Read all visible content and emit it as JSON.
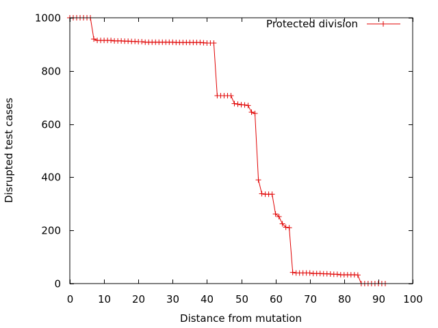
{
  "chart_data": {
    "type": "line",
    "title": "",
    "xlabel": "Distance from mutation",
    "ylabel": "Disrupted test cases",
    "xlim": [
      0,
      100
    ],
    "ylim": [
      0,
      1000
    ],
    "xticks": [
      0,
      10,
      20,
      30,
      40,
      50,
      60,
      70,
      80,
      90,
      100
    ],
    "yticks": [
      0,
      200,
      400,
      600,
      800,
      1000
    ],
    "grid": false,
    "legend_position": "top-right",
    "series": [
      {
        "name": "Protected division",
        "color": "#e00000",
        "marker": "plus",
        "x": [
          0,
          1,
          2,
          3,
          4,
          5,
          6,
          7,
          8,
          9,
          10,
          11,
          12,
          13,
          14,
          15,
          16,
          17,
          18,
          19,
          20,
          21,
          22,
          23,
          24,
          25,
          26,
          27,
          28,
          29,
          30,
          31,
          32,
          33,
          34,
          35,
          36,
          37,
          38,
          39,
          40,
          41,
          42,
          43,
          44,
          45,
          46,
          47,
          48,
          49,
          50,
          51,
          52,
          53,
          54,
          55,
          56,
          57,
          58,
          59,
          60,
          61,
          62,
          63,
          64,
          65,
          66,
          67,
          68,
          69,
          70,
          71,
          72,
          73,
          74,
          75,
          76,
          77,
          78,
          79,
          80,
          81,
          82,
          83,
          84,
          85,
          86,
          87,
          88,
          89,
          90,
          91,
          92
        ],
        "y": [
          1000,
          1000,
          1000,
          1000,
          1000,
          1000,
          1000,
          920,
          915,
          915,
          915,
          915,
          915,
          913,
          913,
          913,
          912,
          912,
          911,
          911,
          910,
          910,
          908,
          908,
          908,
          908,
          908,
          908,
          908,
          908,
          908,
          907,
          907,
          907,
          907,
          907,
          907,
          907,
          907,
          906,
          905,
          905,
          905,
          707,
          707,
          707,
          707,
          707,
          677,
          675,
          673,
          672,
          670,
          645,
          640,
          390,
          338,
          336,
          336,
          336,
          262,
          252,
          225,
          212,
          210,
          42,
          40,
          40,
          40,
          40,
          40,
          38,
          38,
          38,
          37,
          37,
          36,
          35,
          35,
          33,
          33,
          33,
          33,
          33,
          32,
          0,
          0,
          0,
          0,
          0,
          0,
          0,
          0
        ]
      }
    ]
  }
}
